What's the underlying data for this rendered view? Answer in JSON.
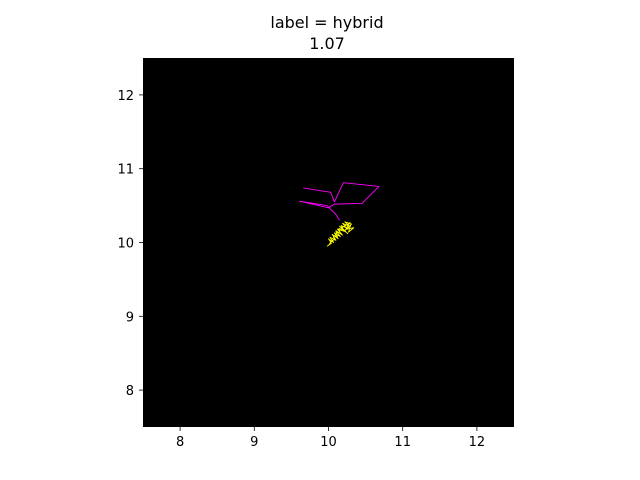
{
  "chart_data": {
    "type": "line",
    "title": "label = hybrid",
    "subtitle": "1.07",
    "xlabel": "",
    "ylabel": "",
    "xlim": [
      7.5,
      12.5
    ],
    "ylim": [
      7.5,
      12.5
    ],
    "xticks": [
      "8",
      "9",
      "10",
      "11",
      "12"
    ],
    "yticks": [
      "8",
      "9",
      "10",
      "11",
      "12"
    ],
    "grid": false,
    "background": "#000000",
    "series": [
      {
        "color": "#ff00ff",
        "x": [
          9.66,
          10.03,
          10.08,
          10.2,
          10.68,
          10.45,
          10.08,
          10.0,
          9.61,
          9.98,
          10.1,
          10.15
        ],
        "y": [
          10.74,
          10.68,
          10.55,
          10.81,
          10.76,
          10.53,
          10.52,
          10.47,
          10.56,
          10.5,
          10.38,
          10.3
        ]
      },
      {
        "color": "#ffff00",
        "x": [
          10.0,
          10.04,
          10.08,
          10.06,
          10.12,
          10.1,
          10.16,
          10.14,
          10.2,
          10.17,
          10.24,
          10.19,
          10.28,
          10.22,
          10.31,
          10.25,
          10.34,
          10.27,
          10.3,
          10.22,
          10.29,
          10.18,
          10.26,
          10.15,
          10.22,
          10.12,
          10.19,
          10.1,
          10.16,
          10.08,
          10.13,
          10.05,
          10.1,
          10.02,
          10.07,
          10.0,
          10.04,
          9.98
        ],
        "y": [
          9.96,
          10.02,
          10.04,
          10.1,
          10.08,
          10.15,
          10.12,
          10.19,
          10.17,
          10.23,
          10.2,
          10.26,
          10.22,
          10.28,
          10.25,
          10.18,
          10.2,
          10.14,
          10.24,
          10.16,
          10.27,
          10.2,
          10.12,
          10.22,
          10.15,
          10.18,
          10.1,
          10.16,
          10.08,
          10.13,
          10.05,
          10.11,
          10.03,
          10.07,
          10.0,
          10.05,
          9.99,
          9.95
        ]
      }
    ]
  }
}
